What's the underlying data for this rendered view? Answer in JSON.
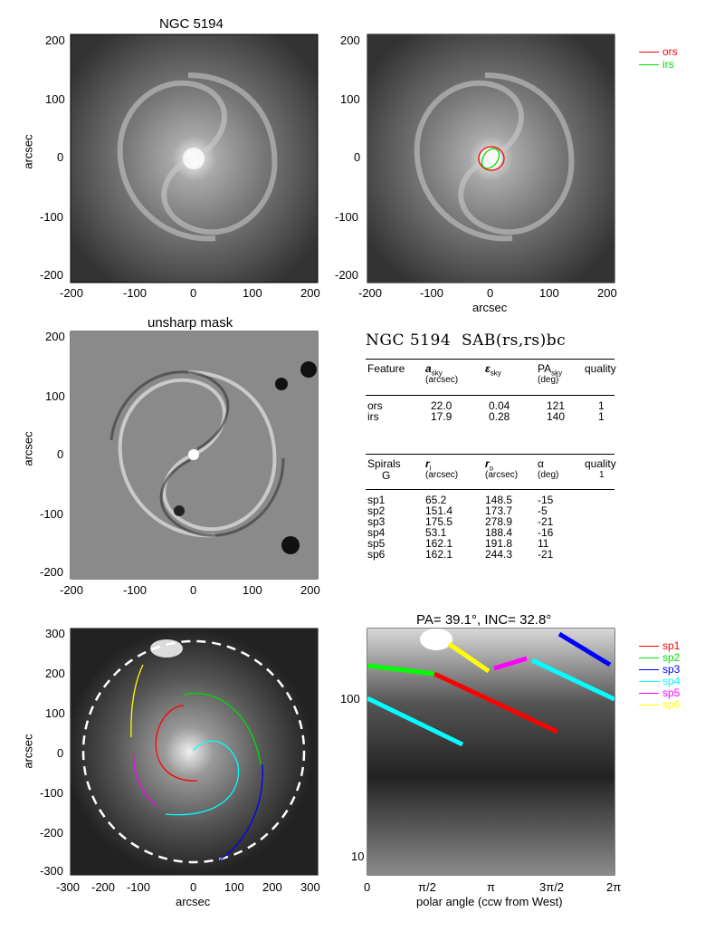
{
  "panels": {
    "p1": {
      "title": "NGC 5194",
      "ylabel": "arcsec",
      "xticks": [
        "-200",
        "-100",
        "0",
        "100",
        "200"
      ],
      "yticks": [
        "200",
        "100",
        "0",
        "-100",
        "-200"
      ]
    },
    "p2": {
      "xlabel": "arcsec",
      "xticks": [
        "-200",
        "-100",
        "0",
        "100",
        "200"
      ],
      "yticks": [
        "200",
        "100",
        "0",
        "-100",
        "-200"
      ]
    },
    "p3": {
      "title": "unsharp mask",
      "ylabel": "arcsec",
      "xticks": [
        "-200",
        "-100",
        "0",
        "100",
        "200"
      ],
      "yticks": [
        "200",
        "100",
        "0",
        "-100",
        "-200"
      ]
    },
    "p5": {
      "ylabel": "arcsec",
      "xlabel": "arcsec",
      "xticks": [
        "-300",
        "-200",
        "-100",
        "0",
        "100",
        "200",
        "300"
      ],
      "yticks": [
        "300",
        "200",
        "100",
        "0",
        "-100",
        "-200",
        "-300"
      ]
    },
    "p6": {
      "title": "PA= 39.1°, INC= 32.8°",
      "xlabel": "polar angle (ccw from West)",
      "xticks": [
        "0",
        "π/2",
        "π",
        "3π/2",
        "2π"
      ],
      "yticks": [
        "100",
        "10"
      ]
    }
  },
  "legend_rings": [
    {
      "label": "ors",
      "color": "#ff0000"
    },
    {
      "label": "irs",
      "color": "#00dd00"
    }
  ],
  "legend_spirals": [
    {
      "label": "sp1",
      "color": "#ff0000"
    },
    {
      "label": "sp2",
      "color": "#00dd00"
    },
    {
      "label": "sp3",
      "color": "#0000ff"
    },
    {
      "label": "sp4",
      "color": "#00ffff"
    },
    {
      "label": "sp5",
      "color": "#ff00ff"
    },
    {
      "label": "sp6",
      "color": "#ffff00"
    }
  ],
  "info": {
    "heading_name": "NGC 5194",
    "heading_type": "SAB(rs,rs)bc",
    "features_header": {
      "c1": "Feature",
      "c2": "a",
      "c2sub": "sky",
      "c2unit": "(arcsec)",
      "c3": "ε",
      "c3sub": "sky",
      "c4": "PA",
      "c4sub": "sky",
      "c4unit": "(deg)",
      "c5": "quality"
    },
    "features": [
      {
        "name": "ors",
        "a": "22.0",
        "e": "0.04",
        "pa": "121",
        "q": "1"
      },
      {
        "name": "irs",
        "a": "17.9",
        "e": "0.28",
        "pa": "140",
        "q": "1"
      }
    ],
    "spirals_header": {
      "c1": "Spirals",
      "c1b": "G",
      "c2": "r",
      "c2sub": "i",
      "c2unit": "(arcsec)",
      "c3": "r",
      "c3sub": "o",
      "c3unit": "(arcsec)",
      "c4": "α",
      "c4unit": "(deg)",
      "c5": "quality",
      "c5b": "1"
    },
    "spirals": [
      {
        "name": "sp1",
        "ri": "65.2",
        "ro": "148.5",
        "alpha": "-15"
      },
      {
        "name": "sp2",
        "ri": "151.4",
        "ro": "173.7",
        "alpha": "-5"
      },
      {
        "name": "sp3",
        "ri": "175.5",
        "ro": "278.9",
        "alpha": "-21"
      },
      {
        "name": "sp4",
        "ri": "53.1",
        "ro": "188.4",
        "alpha": "-16"
      },
      {
        "name": "sp5",
        "ri": "162.1",
        "ro": "191.8",
        "alpha": "11"
      },
      {
        "name": "sp6",
        "ri": "162.1",
        "ro": "244.3",
        "alpha": "-21"
      }
    ]
  }
}
